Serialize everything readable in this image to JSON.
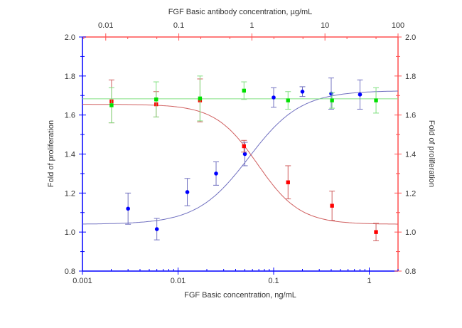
{
  "chart_data": {
    "type": "scatter",
    "xlabel": "FGF Basic concentration, ng/mL",
    "x2label": "FGF Basic antibody concentration, µg/mL",
    "ylabel": "Fold of proliferation",
    "y2label": "Fold of proliferation",
    "xscale": "log",
    "xlim": [
      0.001,
      2
    ],
    "x2lim": [
      0.0048,
      100
    ],
    "ylim": [
      0.8,
      2.0
    ],
    "xticks": [
      "0.001",
      "0.01",
      "0.1",
      "1"
    ],
    "x2ticks": [
      "0.01",
      "0.1",
      "1",
      "10",
      "100"
    ],
    "yticks": [
      "0.8",
      "1.0",
      "1.2",
      "1.4",
      "1.6",
      "1.8",
      "2.0"
    ],
    "grid": false,
    "series": [
      {
        "axis": "bottom",
        "color": "#0000ff",
        "fit_color": "#7070c0",
        "marker": "circle",
        "x": [
          0.003,
          0.006,
          0.0125,
          0.025,
          0.05,
          0.1,
          0.2,
          0.4,
          0.8
        ],
        "y": [
          1.12,
          1.015,
          1.205,
          1.3,
          1.4,
          1.69,
          1.72,
          1.71,
          1.705
        ],
        "err": [
          0.08,
          0.055,
          0.07,
          0.06,
          0.06,
          0.05,
          0.025,
          0.08,
          0.075
        ]
      },
      {
        "axis": "top",
        "color": "#ff0000",
        "fit_color": "#d06060",
        "marker": "square",
        "x": [
          0.012,
          0.049,
          0.195,
          0.78,
          3.125,
          12.5,
          50
        ],
        "y": [
          1.67,
          1.655,
          1.675,
          1.44,
          1.255,
          1.135,
          1.0
        ],
        "err": [
          0.11,
          0.065,
          0.11,
          0.03,
          0.085,
          0.075,
          0.045
        ]
      },
      {
        "axis": "top",
        "color": "#00e000",
        "fit_color": "#80e080",
        "marker": "square",
        "x": [
          0.012,
          0.049,
          0.195,
          0.78,
          3.125,
          12.5,
          50
        ],
        "y": [
          1.65,
          1.68,
          1.685,
          1.725,
          1.675,
          1.675,
          1.675
        ],
        "err": [
          0.09,
          0.09,
          0.115,
          0.045,
          0.045,
          0.04,
          0.065
        ]
      }
    ]
  }
}
